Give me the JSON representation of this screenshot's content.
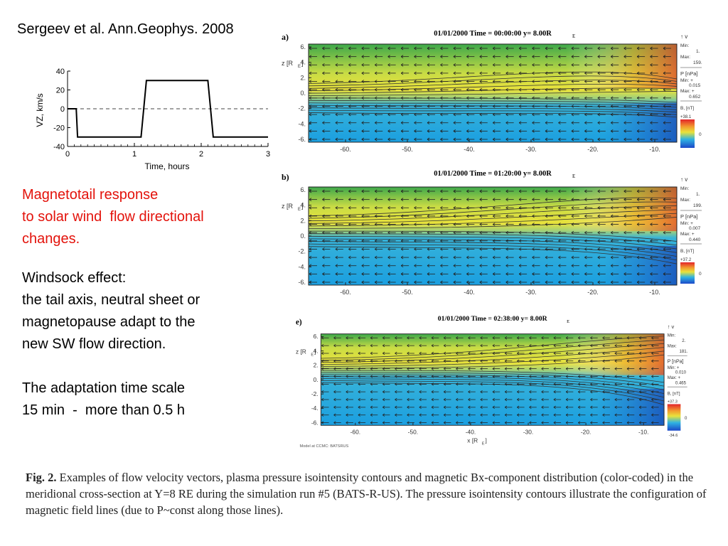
{
  "reference": "Sergeev et al. Ann.Geophys. 2008",
  "red_text": [
    "Magnetotail response",
    "to solar wind  flow directional",
    "changes."
  ],
  "windsock": [
    "Windsock effect:",
    "the tail axis, neutral sheet or",
    "magnetopause adapt to the",
    "new SW flow direction."
  ],
  "timescale": [
    "The adaptation time scale",
    "15 min  -  more than 0.5 h"
  ],
  "chart_data": {
    "type": "line",
    "xlabel": "Time, hours",
    "ylabel": "VZ, km/s",
    "xlim": [
      0,
      3
    ],
    "ylim": [
      -40,
      40
    ],
    "xticks": [
      "0",
      "1",
      "2",
      "3"
    ],
    "yticks": [
      "40",
      "20",
      "0",
      "-20",
      "-40"
    ],
    "grid": false,
    "dashed_reference_line": 0,
    "x": [
      0,
      0.13,
      0.15,
      1.1,
      1.18,
      2.1,
      2.18,
      3.0
    ],
    "y": [
      0,
      0,
      -30,
      -30,
      30,
      30,
      -30,
      -30
    ]
  },
  "panels": [
    {
      "letter": "a)",
      "title": "01/01/2000 Time = 00:00:00",
      "y_label": "y= 8.00R",
      "vmin": "1.",
      "vmax": "159.",
      "pmin": "0.015",
      "pmax": "0.652",
      "bmax": "+38.1",
      "bzero": "0"
    },
    {
      "letter": "b)",
      "title": "01/01/2000 Time = 01:20:00",
      "y_label": "y= 8.00R",
      "vmin": "1.",
      "vmax": "199.",
      "pmin": "0.007",
      "pmax": "0.440",
      "bmax": "+37.2",
      "bzero": "0"
    },
    {
      "letter": "e)",
      "title": "01/01/2000 Time = 02:38:00",
      "y_label": "y= 8.00R",
      "vmin": "2.",
      "vmax": "181.",
      "pmin": "0.010",
      "pmax": "0.465",
      "bmax": "+37.3",
      "bzero": "0",
      "bmin": "-34.6"
    }
  ],
  "panel_common": {
    "z_axis": "z [R",
    "xticks": [
      "-60.",
      "-50.",
      "-40.",
      "-30.",
      "-20.",
      "-10."
    ],
    "yticks": [
      "6.",
      "4.",
      "2.",
      "0.",
      "-2.",
      "-4.",
      "-6."
    ],
    "x_axis": "x [R",
    "legend_v": "v",
    "legend_min": "Min:",
    "legend_max": "Max:",
    "legend_p": "P [nPa]",
    "legend_pmin": "Min: +",
    "legend_pmax": "Max: +",
    "legend_b": "B",
    "model_note": "Model at CCMC: BATSRUS"
  },
  "caption": {
    "fig": "Fig. 2.",
    "text": "Examples of flow velocity vectors, plasma pressure isointensity contours and magnetic Bx-component distribution (color-coded) in the meridional cross-section at Y=8 RE during the simulation run #5 (BATS-R-US). The pressure isointensity contours illustrate the configuration of magnetic field lines (due to P~const along those lines)."
  },
  "colors": {
    "red_text": "#e3120b",
    "yellow": "#e9e23c",
    "green": "#4db84a",
    "blue": "#21a7e6",
    "orange": "#f2a22e"
  }
}
